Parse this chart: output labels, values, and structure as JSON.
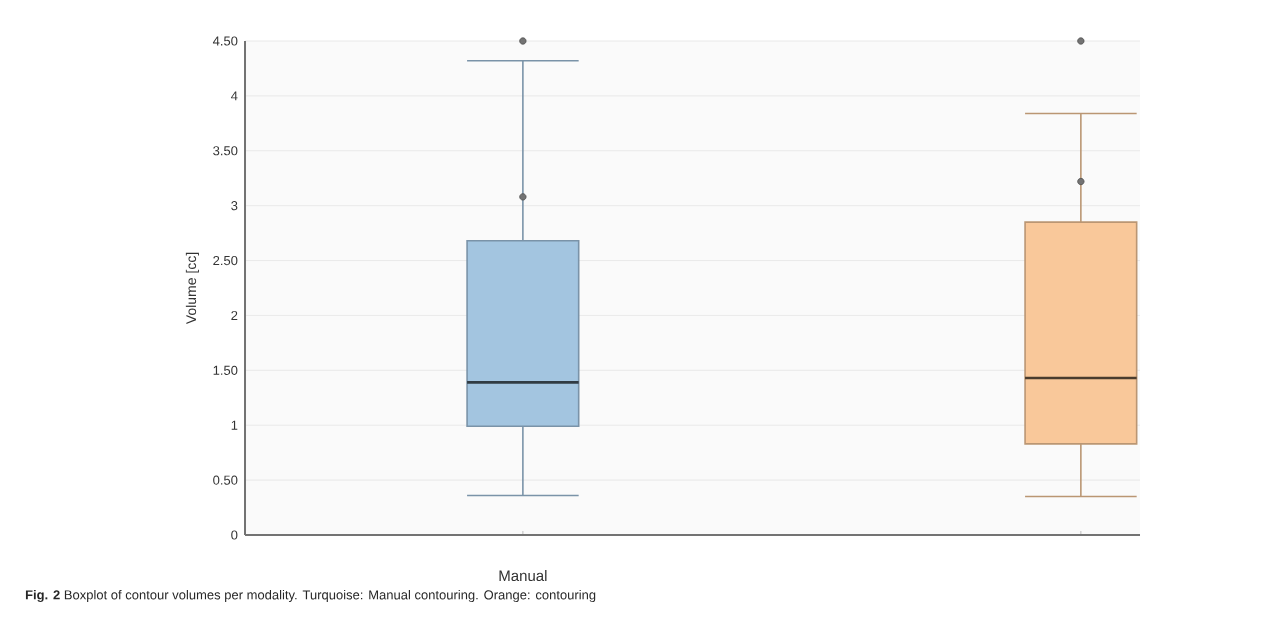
{
  "chart_data": {
    "type": "box",
    "ylabel": "Volume [cc]",
    "categories": [
      "Manual",
      null
    ],
    "boxes": [
      {
        "low": 0.36,
        "q1": 0.99,
        "median": 1.39,
        "q3": 2.68,
        "high": 4.32,
        "outliers": [
          3.08,
          4.5
        ]
      },
      {
        "low": 0.35,
        "q1": 0.83,
        "median": 1.43,
        "q3": 2.85,
        "high": 3.84,
        "outliers": [
          3.22,
          4.5
        ]
      }
    ],
    "colors": [
      "#a3c5e0",
      "#f9c89a"
    ],
    "ylim": [
      0,
      4.5
    ],
    "yticks": [
      0,
      {
        "value": 0.5,
        "label": "0.50"
      },
      1,
      {
        "value": 1.5,
        "label": "1.50"
      },
      2,
      {
        "value": 2.5,
        "label": "2.50"
      },
      3,
      {
        "value": 3.5,
        "label": "3.50"
      },
      4,
      {
        "value": 4.5,
        "label": "4.50"
      }
    ],
    "grid": "y",
    "annotations": [
      "**Fig. 2** Boxplot of contour volumes per modality. Turquoise: Manual contouring. Orange: contouring"
    ]
  }
}
